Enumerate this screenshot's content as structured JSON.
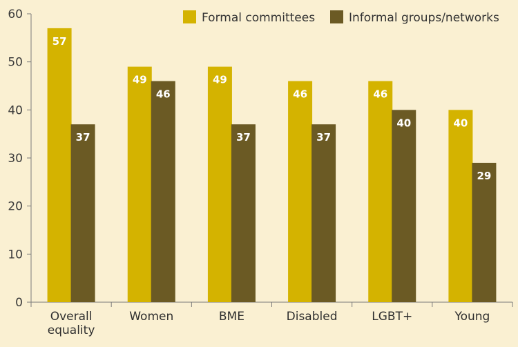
{
  "chart_data": {
    "type": "bar",
    "categories": [
      "Overall equality",
      "Women",
      "BME",
      "Disabled",
      "LGBT+",
      "Young"
    ],
    "series": [
      {
        "name": "Formal committees",
        "values": [
          57,
          49,
          49,
          46,
          46,
          40
        ],
        "color": "#d4b300"
      },
      {
        "name": "Informal groups/networks",
        "values": [
          37,
          46,
          37,
          37,
          40,
          29
        ],
        "color": "#6b5a24"
      }
    ],
    "ylim": [
      0,
      60
    ],
    "yticks": [
      0,
      10,
      20,
      30,
      40,
      50,
      60
    ],
    "grid": false,
    "legend": "top-right",
    "data_labels": true,
    "background": "#faf0d2",
    "axis_color": "#7a7a7a"
  }
}
